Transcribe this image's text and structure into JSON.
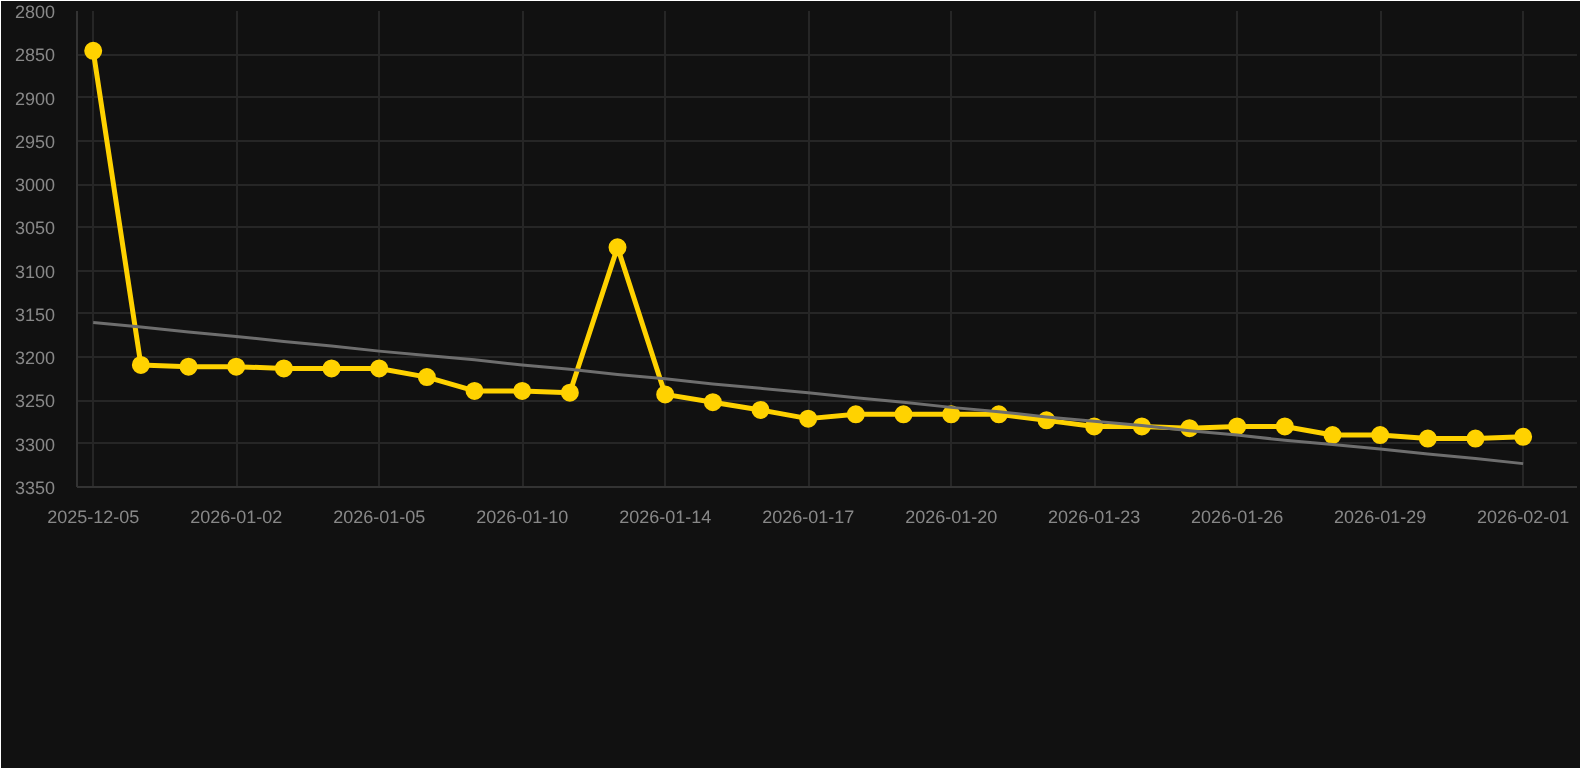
{
  "chart_data": {
    "type": "line",
    "categories": [
      "2025-12-05",
      null,
      null,
      "2026-01-02",
      null,
      null,
      "2026-01-05",
      null,
      null,
      "2026-01-10",
      null,
      null,
      "2026-01-14",
      null,
      null,
      "2026-01-17",
      null,
      null,
      "2026-01-20",
      null,
      null,
      "2026-01-23",
      null,
      null,
      "2026-01-26",
      null,
      null,
      "2026-01-29",
      null,
      null,
      "2026-02-01"
    ],
    "series": [
      {
        "color": "#ffd200",
        "marker": "circle",
        "values": [
          2846,
          3209,
          3211,
          3211,
          3213,
          3213,
          3213,
          3223,
          3239,
          3239,
          3241,
          3073,
          3243,
          3252,
          3261,
          3271,
          3266,
          3266,
          3266,
          3266,
          3273,
          3280,
          3280,
          3282,
          3280,
          3280,
          3290,
          3290,
          3294,
          3294,
          3292
        ]
      },
      {
        "color": "#6e6e6e",
        "marker": "none",
        "values": [
          3160,
          3165,
          3171,
          3176,
          3182,
          3187,
          3193,
          3198,
          3203,
          3209,
          3214,
          3220,
          3225,
          3231,
          3236,
          3241,
          3247,
          3252,
          3258,
          3263,
          3269,
          3274,
          3279,
          3285,
          3290,
          3296,
          3301,
          3306,
          3312,
          3317,
          3323
        ]
      }
    ],
    "ylim": [
      3350,
      2800
    ],
    "yticks": [
      2800,
      2850,
      2900,
      2950,
      3000,
      3050,
      3100,
      3150,
      3200,
      3250,
      3300,
      3350
    ],
    "grid": true
  }
}
